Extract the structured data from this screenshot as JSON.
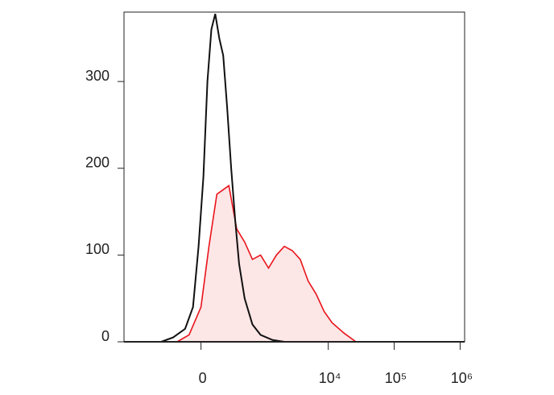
{
  "chart_data": {
    "type": "histogram-overlay",
    "xscale": "biexponential",
    "xlim": [
      -1720,
      1170000
    ],
    "xticks": [
      0,
      {
        "value": 10000,
        "label": "10⁴"
      },
      {
        "value": 100000,
        "label": "10⁵"
      },
      {
        "value": 1000000,
        "label": "10⁶"
      }
    ],
    "ylim": [
      0,
      380
    ],
    "yticks": [
      0,
      100,
      200,
      300
    ],
    "series": [
      {
        "color": "#111111",
        "fill": null,
        "x": [
          -442,
          -266,
          -137,
          -66,
          -20,
          20,
          53,
          87,
          122,
          160,
          201,
          246,
          296,
          352,
          413,
          514,
          690,
          926,
          1420,
          2150
        ],
        "values": [
          0,
          5,
          15,
          40,
          110,
          190,
          300,
          360,
          378,
          350,
          330,
          270,
          200,
          140,
          90,
          50,
          20,
          8,
          2,
          0
        ]
      },
      {
        "color": "#e8141b",
        "fill": "#fde6e6",
        "x": [
          -219,
          -101,
          0,
          66,
          137,
          266,
          376,
          514,
          690,
          926,
          1231,
          1628,
          2150,
          2850,
          3760,
          4960,
          6550,
          8650,
          11420,
          17320,
          26270
        ],
        "values": [
          0,
          8,
          40,
          110,
          170,
          180,
          130,
          115,
          95,
          100,
          85,
          100,
          110,
          105,
          95,
          70,
          55,
          35,
          22,
          10,
          0
        ]
      }
    ]
  }
}
